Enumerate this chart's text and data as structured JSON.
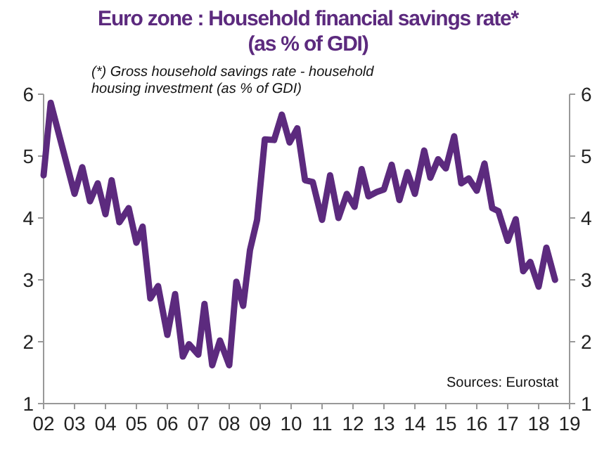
{
  "chart_data": {
    "type": "line",
    "title": "Euro zone : Household financial savings rate* (as % of GDI)",
    "annotations": [
      "(*) Gross household savings rate - household housing investment (as % of GDI)",
      "Sources: Eurostat"
    ],
    "x": [
      2002.0,
      2002.23,
      2003.0,
      2003.25,
      2003.5,
      2003.75,
      2004.0,
      2004.2,
      2004.45,
      2004.75,
      2005.0,
      2005.2,
      2005.45,
      2005.7,
      2006.0,
      2006.25,
      2006.5,
      2006.7,
      2007.0,
      2007.2,
      2007.45,
      2007.7,
      2008.0,
      2008.23,
      2008.45,
      2008.67,
      2008.9,
      2009.15,
      2009.45,
      2009.7,
      2009.95,
      2010.2,
      2010.45,
      2010.7,
      2011.0,
      2011.26,
      2011.53,
      2011.8,
      2012.05,
      2012.28,
      2012.5,
      2012.77,
      2013.0,
      2013.25,
      2013.5,
      2013.76,
      2014.0,
      2014.3,
      2014.5,
      2014.75,
      2015.0,
      2015.27,
      2015.5,
      2015.74,
      2016.0,
      2016.25,
      2016.5,
      2016.7,
      2017.0,
      2017.26,
      2017.5,
      2017.73,
      2018.0,
      2018.25,
      2018.53
    ],
    "series": [
      {
        "color": "#5c2a7e",
        "values": [
          4.69,
          5.86,
          4.39,
          4.82,
          4.27,
          4.56,
          4.06,
          4.61,
          3.93,
          4.16,
          3.6,
          3.86,
          2.7,
          2.9,
          2.11,
          2.77,
          1.76,
          1.96,
          1.79,
          2.61,
          1.62,
          2.02,
          1.62,
          2.97,
          2.58,
          3.48,
          3.97,
          5.27,
          5.26,
          5.67,
          5.22,
          5.45,
          4.61,
          4.58,
          3.97,
          4.69,
          4.0,
          4.39,
          4.18,
          4.79,
          4.35,
          4.42,
          4.46,
          4.86,
          4.29,
          4.74,
          4.39,
          5.09,
          4.65,
          4.95,
          4.8,
          5.32,
          4.56,
          4.64,
          4.44,
          4.88,
          4.16,
          4.11,
          3.63,
          3.98,
          3.14,
          3.29,
          2.89,
          3.52,
          3.0
        ]
      }
    ],
    "xlim": [
      2002,
      2019
    ],
    "xticks": [
      {
        "value": 2002,
        "label": "02"
      },
      {
        "value": 2003,
        "label": "03"
      },
      {
        "value": 2004,
        "label": "04"
      },
      {
        "value": 2005,
        "label": "05"
      },
      {
        "value": 2006,
        "label": "06"
      },
      {
        "value": 2007,
        "label": "07"
      },
      {
        "value": 2008,
        "label": "08"
      },
      {
        "value": 2009,
        "label": "09"
      },
      {
        "value": 2010,
        "label": "10"
      },
      {
        "value": 2011,
        "label": "11"
      },
      {
        "value": 2012,
        "label": "12"
      },
      {
        "value": 2013,
        "label": "13"
      },
      {
        "value": 2014,
        "label": "14"
      },
      {
        "value": 2015,
        "label": "15"
      },
      {
        "value": 2016,
        "label": "16"
      },
      {
        "value": 2017,
        "label": "17"
      },
      {
        "value": 2018,
        "label": "18"
      },
      {
        "value": 2019,
        "label": "19"
      }
    ],
    "ylim": [
      1,
      6
    ],
    "yticks": [
      1,
      2,
      3,
      4,
      5,
      6
    ],
    "y2lim": [
      1,
      6
    ],
    "y2ticks": [
      1,
      2,
      3,
      4,
      5,
      6
    ],
    "grid": false,
    "marker": "none",
    "line_style": "solid"
  }
}
